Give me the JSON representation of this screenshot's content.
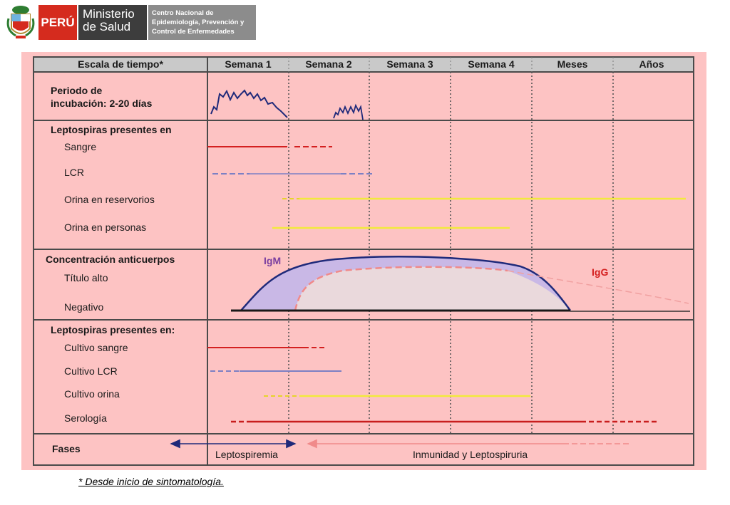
{
  "header": {
    "peru_label": "PERÚ",
    "ministry_line1": "Ministerio",
    "ministry_line2": "de Salud",
    "center_line1": "Centro Nacional de",
    "center_line2": "Epidemiología, Prevención y",
    "center_line3": "Control de Enfermedades"
  },
  "colors": {
    "background": "#fdc3c3",
    "header_row": "#c9c9c9",
    "blood_red": "#d42020",
    "csf_blue": "#7c80c4",
    "urine_yellow": "#f2ea3c",
    "igm_fill": "#c9b8e6",
    "igg_fill": "#ead9dc",
    "igm_line": "#1f2a7a",
    "igg_line": "#f08a8a"
  },
  "table": {
    "columns": [
      "Escala de tiempo*",
      "Semana 1",
      "Semana 2",
      "Semana 3",
      "Semana 4",
      "Meses",
      "Años"
    ],
    "incubation": {
      "label_line1": "Periodo de",
      "label_line2": "incubación:  2-20 días"
    },
    "presence": {
      "heading": "Leptospiras presentes en",
      "rows": [
        "Sangre",
        "LCR",
        "Orina en reservorios",
        "Orina en personas"
      ]
    },
    "antibodies": {
      "heading": "Concentración anticuerpos",
      "high": "Título alto",
      "negative": "Negativo",
      "igm_label": "IgM",
      "igg_label": "IgG"
    },
    "culture": {
      "heading": "Leptospiras presentes en:",
      "rows": [
        "Cultivo sangre",
        "Cultivo LCR",
        "Cultivo orina",
        "Serología"
      ]
    },
    "phases": {
      "heading": "Fases",
      "phase1": "Leptospiremia",
      "phase2": "Inmunidad y Leptospiruria"
    }
  },
  "footnote": "* Desde inicio de sintomatología."
}
